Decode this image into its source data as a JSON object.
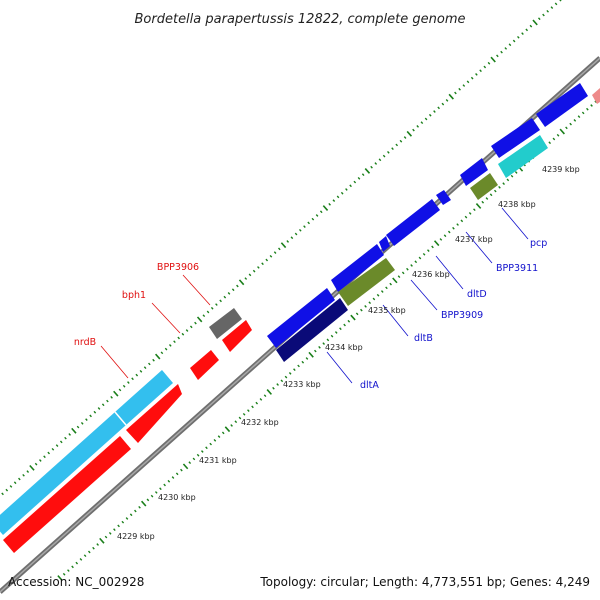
{
  "title": "Bordetella parapertussis 12822, complete genome",
  "accession": "Accession: NC_002928",
  "summary": "Topology: circular; Length: 4,773,551 bp; Genes: 4,249",
  "colors": {
    "backbone": "#808080",
    "tick": "#1a7f1a",
    "forward_gene": "#1010e6",
    "dark_blue_gene": "#0a0a78",
    "olive_gene": "#6b8a2a",
    "cyan_gene": "#22cccc",
    "sky_gene": "#33bfee",
    "red_gene": "#ff0d0d",
    "grey_gene": "#666666",
    "pink_gene": "#ee8a8a",
    "label_red": "#e01010",
    "label_blue": "#1010cc"
  },
  "scale": {
    "units": "kbp",
    "labels": [
      "4229 kbp",
      "4230 kbp",
      "4231 kbp",
      "4232 kbp",
      "4233 kbp",
      "4234 kbp",
      "4235 kbp",
      "4236 kbp",
      "4237 kbp",
      "4238 kbp",
      "4239 kbp"
    ]
  },
  "gene_labels": {
    "outer": [
      "BPP3906",
      "bph1",
      "nrdB"
    ],
    "inner": [
      "dltA",
      "dltB",
      "BPP3909",
      "dltD",
      "BPP3911",
      "pcp"
    ]
  }
}
